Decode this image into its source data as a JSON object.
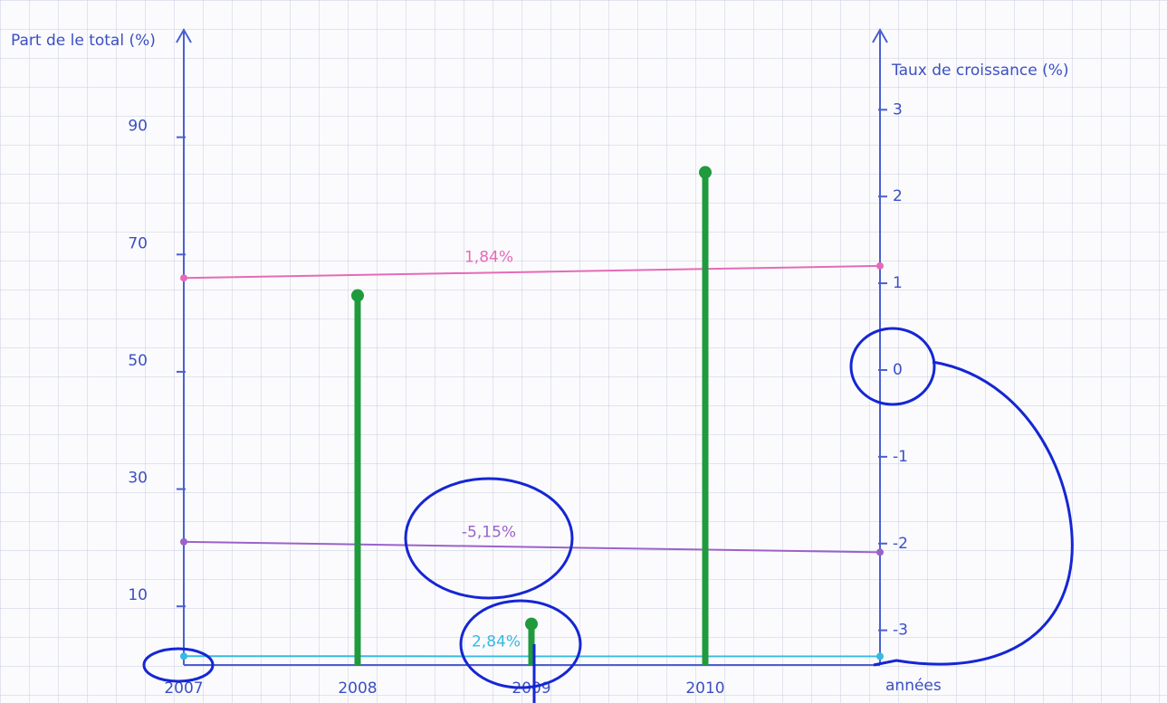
{
  "chart_data": {
    "type": "stem",
    "y_label": "Part de le total (%)",
    "y2_label": "Taux de croissance (%)",
    "x_label": "années",
    "categories": [
      "2007",
      "2008",
      "2009",
      "2010"
    ],
    "values": [
      null,
      63,
      7,
      84
    ],
    "color": "#1f9a3c",
    "ylim": [
      0,
      108
    ],
    "yticks": [
      10,
      30,
      50,
      70,
      90
    ],
    "y2lim": [
      -3.4,
      3.9
    ],
    "y2ticks": [
      -3,
      -2,
      -1,
      0,
      1,
      2,
      3
    ],
    "reference_lines": [
      {
        "label": "1,84%",
        "color": "#e66ab8",
        "y": 66,
        "y2": 1.2
      },
      {
        "label": "-5,15%",
        "color": "#9b62c9",
        "y": 21,
        "y2": -2.1
      },
      {
        "label": "2,84%",
        "color": "#36b9e2",
        "y": 1.5,
        "y2": -3.3
      }
    ]
  }
}
